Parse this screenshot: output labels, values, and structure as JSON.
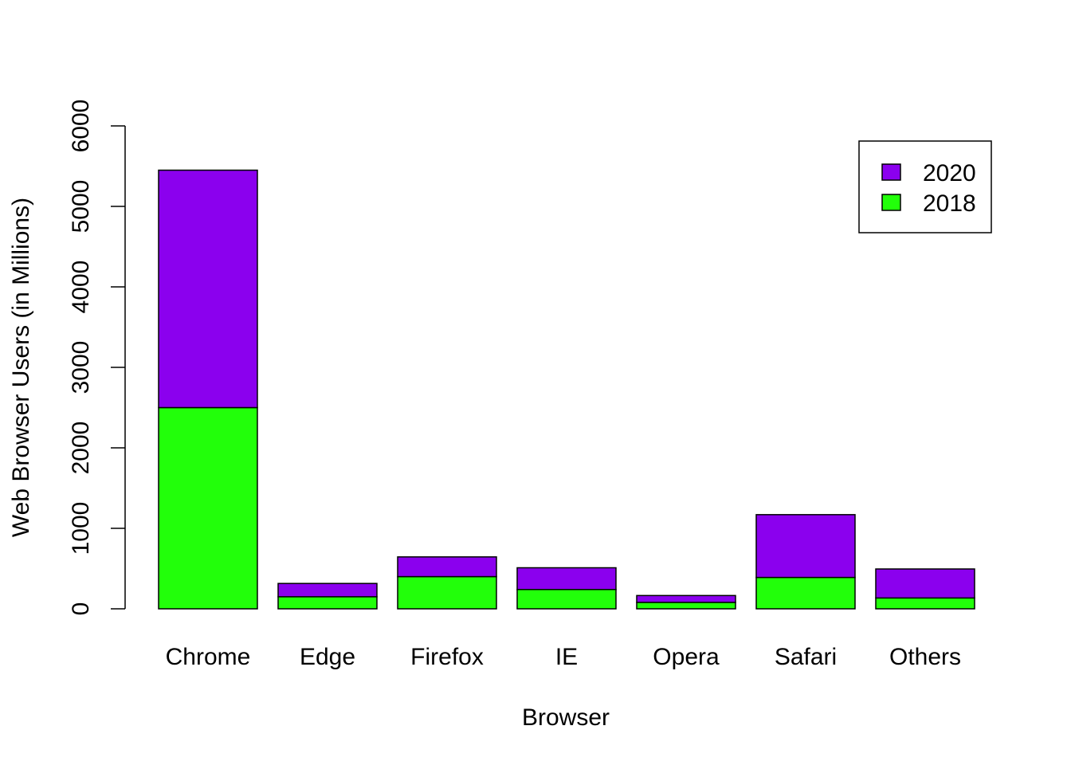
{
  "chart_data": {
    "type": "bar",
    "stacked": true,
    "title": "",
    "xlabel": "Browser",
    "ylabel": "Web Browser Users (in Millions)",
    "ylim": [
      0,
      6000
    ],
    "yticks": [
      "0",
      "1000",
      "2000",
      "3000",
      "4000",
      "5000",
      "6000"
    ],
    "categories": [
      "Chrome",
      "Edge",
      "Firefox",
      "IE",
      "Opera",
      "Safari",
      "Others"
    ],
    "series": [
      {
        "name": "2018",
        "color": "#22ff0a",
        "values": [
          2500,
          150,
          400,
          240,
          80,
          390,
          135
        ]
      },
      {
        "name": "2020",
        "color": "#8b00ee",
        "values": [
          2950,
          165,
          245,
          270,
          85,
          780,
          360
        ]
      }
    ],
    "legend": {
      "position": "top-right",
      "entries": [
        "2020",
        "2018"
      ]
    },
    "grid": false
  }
}
